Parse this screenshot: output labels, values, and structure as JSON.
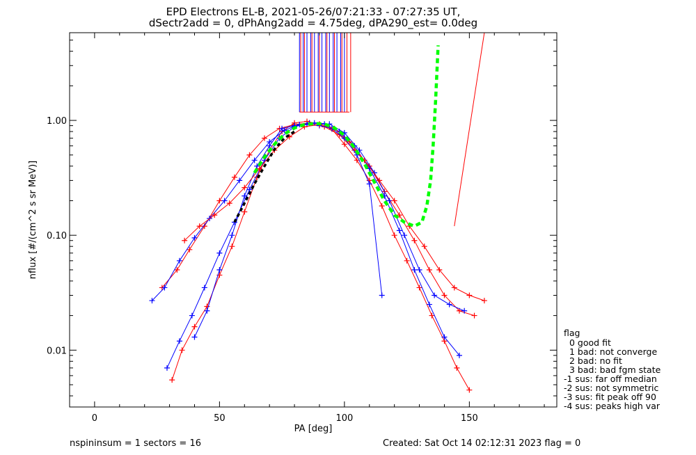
{
  "chart_data": {
    "type": "scatter",
    "title": "EPD Electrons EL-B, 2021-05-26/07:21:33 - 07:27:35 UT,",
    "subtitle": "dSectr2add = 0, dPhAng2add = 4.75deg, dPA290_est=   0.0deg",
    "xlabel": "PA [deg]",
    "ylabel": "nflux [#/(cm^2 s sr MeV)]",
    "xlim": [
      -10,
      185
    ],
    "ylim": [
      0.0032,
      5.8
    ],
    "yscale": "log",
    "xticks": [
      0,
      50,
      100,
      150
    ],
    "xtick_labels": [
      "0",
      "50",
      "100",
      "150"
    ],
    "yticks": [
      0.01,
      0.1,
      1.0
    ],
    "ytick_labels": [
      "0.01",
      "0.10",
      "1.00"
    ],
    "series": [
      {
        "color": "#ff0000",
        "points": [
          [
            31,
            0.0055
          ],
          [
            35,
            0.01
          ],
          [
            40,
            0.016
          ],
          [
            45,
            0.024
          ],
          [
            50,
            0.045
          ],
          [
            55,
            0.08
          ],
          [
            60,
            0.16
          ],
          [
            65,
            0.32
          ],
          [
            70,
            0.55
          ],
          [
            75,
            0.8
          ],
          [
            80,
            0.95
          ],
          [
            85,
            0.98
          ],
          [
            90,
            0.93
          ],
          [
            95,
            0.84
          ],
          [
            100,
            0.62
          ],
          [
            105,
            0.45
          ],
          [
            110,
            0.3
          ],
          [
            115,
            0.18
          ],
          [
            120,
            0.1
          ],
          [
            125,
            0.06
          ],
          [
            130,
            0.035
          ],
          [
            135,
            0.02
          ],
          [
            140,
            0.012
          ],
          [
            145,
            0.007
          ],
          [
            150,
            0.0045
          ]
        ]
      },
      {
        "color": "#ff0000",
        "points": [
          [
            27,
            0.035
          ],
          [
            33,
            0.05
          ],
          [
            38,
            0.075
          ],
          [
            44,
            0.12
          ],
          [
            50,
            0.2
          ],
          [
            56,
            0.32
          ],
          [
            62,
            0.5
          ],
          [
            68,
            0.7
          ],
          [
            74,
            0.85
          ],
          [
            80,
            0.92
          ],
          [
            86,
            0.95
          ],
          [
            92,
            0.88
          ],
          [
            98,
            0.75
          ],
          [
            104,
            0.55
          ],
          [
            110,
            0.4
          ],
          [
            116,
            0.24
          ],
          [
            122,
            0.15
          ],
          [
            128,
            0.09
          ],
          [
            134,
            0.05
          ],
          [
            140,
            0.03
          ],
          [
            146,
            0.022
          ],
          [
            152,
            0.02
          ]
        ]
      },
      {
        "color": "#0000ff",
        "points": [
          [
            29,
            0.007
          ],
          [
            34,
            0.012
          ],
          [
            39,
            0.02
          ],
          [
            44,
            0.035
          ],
          [
            50,
            0.07
          ],
          [
            56,
            0.13
          ],
          [
            62,
            0.25
          ],
          [
            68,
            0.45
          ],
          [
            74,
            0.7
          ],
          [
            80,
            0.88
          ],
          [
            86,
            0.95
          ],
          [
            92,
            0.93
          ],
          [
            98,
            0.8
          ],
          [
            104,
            0.6
          ],
          [
            110,
            0.38
          ],
          [
            116,
            0.22
          ],
          [
            122,
            0.11
          ],
          [
            128,
            0.05
          ],
          [
            134,
            0.025
          ],
          [
            140,
            0.013
          ],
          [
            146,
            0.009
          ]
        ]
      },
      {
        "color": "#0000ff",
        "points": [
          [
            23,
            0.027
          ],
          [
            28,
            0.035
          ],
          [
            34,
            0.06
          ],
          [
            40,
            0.095
          ],
          [
            46,
            0.14
          ],
          [
            52,
            0.2
          ],
          [
            58,
            0.3
          ],
          [
            64,
            0.45
          ],
          [
            70,
            0.65
          ],
          [
            76,
            0.82
          ],
          [
            82,
            0.92
          ],
          [
            88,
            0.95
          ],
          [
            94,
            0.93
          ],
          [
            100,
            0.78
          ],
          [
            106,
            0.55
          ],
          [
            112,
            0.35
          ],
          [
            118,
            0.2
          ],
          [
            124,
            0.1
          ],
          [
            130,
            0.05
          ],
          [
            136,
            0.03
          ],
          [
            142,
            0.025
          ],
          [
            148,
            0.022
          ]
        ]
      },
      {
        "color": "#0000ff",
        "points": [
          [
            40,
            0.013
          ],
          [
            45,
            0.022
          ],
          [
            50,
            0.05
          ],
          [
            55,
            0.1
          ],
          [
            60,
            0.22
          ],
          [
            65,
            0.4
          ],
          [
            70,
            0.6
          ],
          [
            75,
            0.85
          ],
          [
            80,
            0.9
          ],
          [
            85,
            0.92
          ],
          [
            90,
            0.9
          ],
          [
            95,
            0.85
          ],
          [
            100,
            0.7
          ],
          [
            105,
            0.5
          ],
          [
            110,
            0.28
          ],
          [
            115,
            0.03
          ]
        ]
      },
      {
        "color": "#ff0000",
        "points": [
          [
            36,
            0.09
          ],
          [
            42,
            0.12
          ],
          [
            48,
            0.15
          ],
          [
            54,
            0.19
          ],
          [
            60,
            0.26
          ],
          [
            66,
            0.38
          ],
          [
            72,
            0.55
          ],
          [
            78,
            0.72
          ],
          [
            84,
            0.88
          ],
          [
            90,
            0.92
          ],
          [
            96,
            0.85
          ],
          [
            102,
            0.65
          ],
          [
            108,
            0.45
          ],
          [
            114,
            0.3
          ],
          [
            120,
            0.2
          ],
          [
            126,
            0.12
          ],
          [
            132,
            0.08
          ],
          [
            138,
            0.05
          ],
          [
            144,
            0.035
          ],
          [
            150,
            0.03
          ],
          [
            156,
            0.027
          ]
        ]
      }
    ],
    "fit_black": {
      "color": "#000000",
      "points": [
        [
          56,
          0.13
        ],
        [
          60,
          0.19
        ],
        [
          64,
          0.28
        ],
        [
          68,
          0.4
        ],
        [
          72,
          0.56
        ],
        [
          76,
          0.7
        ],
        [
          80,
          0.8
        ]
      ]
    },
    "fit_green": {
      "color": "#00ff00",
      "points": [
        [
          64,
          0.35
        ],
        [
          68,
          0.48
        ],
        [
          72,
          0.62
        ],
        [
          76,
          0.76
        ],
        [
          80,
          0.86
        ],
        [
          84,
          0.92
        ],
        [
          88,
          0.94
        ],
        [
          92,
          0.93
        ],
        [
          96,
          0.86
        ],
        [
          100,
          0.74
        ],
        [
          104,
          0.58
        ],
        [
          108,
          0.42
        ],
        [
          112,
          0.29
        ],
        [
          116,
          0.2
        ],
        [
          120,
          0.15
        ],
        [
          124,
          0.13
        ],
        [
          128,
          0.12
        ],
        [
          131,
          0.13
        ],
        [
          133,
          0.18
        ],
        [
          134.5,
          0.3
        ],
        [
          135.5,
          0.6
        ],
        [
          136.5,
          1.5
        ],
        [
          137.5,
          4.5
        ]
      ]
    },
    "vlines_blue": [
      82,
      83.5,
      85,
      86.5,
      88,
      89.5,
      91,
      92.5,
      94,
      95.5,
      97,
      98.5,
      100
    ],
    "vlines_red": [
      82.5,
      84,
      87,
      90,
      93,
      96,
      99,
      101,
      102.5
    ],
    "vline_ymin": 1.18,
    "red_rise": [
      [
        144,
        0.12
      ],
      [
        156,
        5.8
      ]
    ],
    "flag_block": {
      "color": "#ff0000",
      "caps": [
        [
          82,
          1.18
        ],
        [
          102,
          1.18
        ]
      ]
    }
  },
  "legend": {
    "title": "flag",
    "items": [
      "0 good fit",
      "1 bad: not converge",
      "2 bad: no fit",
      "3 bad: bad fgm state",
      "-1 sus: far off median",
      "-2 sus: not symmetric",
      "-3 sus: fit peak off 90",
      "-4 sus: peaks high var"
    ]
  },
  "footer": {
    "left": "nspininsum =  1  sectors = 16",
    "right": "Created: Sat Oct 14 02:12:31 2023   flag = 0"
  }
}
